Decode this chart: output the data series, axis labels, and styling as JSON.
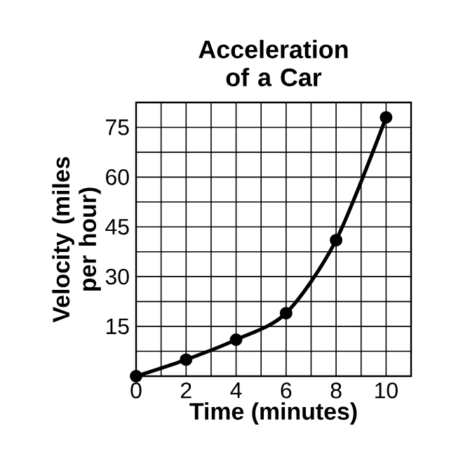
{
  "chart_data": {
    "type": "line",
    "title": "Acceleration of a Car",
    "xlabel": "Time (minutes)",
    "ylabel": "Velocity (miles per hour)",
    "x": [
      0,
      2,
      4,
      6,
      8,
      10
    ],
    "series": [
      {
        "color": "#000000",
        "values": [
          0,
          5,
          11,
          19,
          41,
          78
        ]
      }
    ],
    "xlim": [
      0,
      11
    ],
    "ylim": [
      0,
      82.5
    ],
    "xticks": [
      0,
      {
        "value": 1,
        "label": null
      },
      2,
      {
        "value": 3,
        "label": null
      },
      4,
      {
        "value": 5,
        "label": null
      },
      6,
      {
        "value": 7,
        "label": null
      },
      8,
      {
        "value": 9,
        "label": null
      },
      10,
      {
        "value": 11,
        "label": null
      }
    ],
    "yticks": [
      {
        "value": 0,
        "label": null
      },
      {
        "value": 7.5,
        "label": null
      },
      15,
      {
        "value": 22.5,
        "label": null
      },
      30,
      {
        "value": 37.5,
        "label": null
      },
      45,
      {
        "value": 52.5,
        "label": null
      },
      60,
      {
        "value": 67.5,
        "label": null
      },
      75,
      {
        "value": 82.5,
        "label": null
      }
    ],
    "grid": true,
    "marker": "circle",
    "line_style": "solid"
  }
}
